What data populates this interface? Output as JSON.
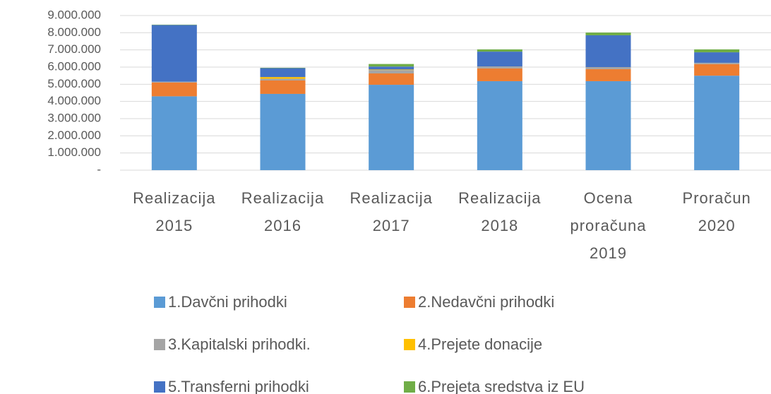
{
  "chart_data": {
    "type": "stacked_bar",
    "categories": [
      "Realizacija 2015",
      "Realizacija 2016",
      "Realizacija 2017",
      "Realizacija 2018",
      "Ocena proračuna 2019",
      "Proračun 2020"
    ],
    "series": [
      {
        "name": "1.Davčni prihodki",
        "color": "#5b9bd5",
        "values": [
          4300000,
          4440000,
          4970000,
          5180000,
          5180000,
          5500000
        ]
      },
      {
        "name": "2.Nedavčni prihodki",
        "color": "#ed7d31",
        "values": [
          800000,
          780000,
          660000,
          740000,
          700000,
          670000
        ]
      },
      {
        "name": "3.Kapitalski prihodki.",
        "color": "#a5a5a5",
        "values": [
          50000,
          100000,
          200000,
          120000,
          120000,
          80000
        ]
      },
      {
        "name": "4.Prejete donacije",
        "color": "#ffc000",
        "values": [
          0,
          100000,
          30000,
          0,
          0,
          0
        ]
      },
      {
        "name": "5.Transferni prihodki",
        "color": "#4472c4",
        "values": [
          3300000,
          520000,
          170000,
          860000,
          1850000,
          610000
        ]
      },
      {
        "name": "6.Prejeta sredstva iz EU",
        "color": "#70ad47",
        "values": [
          20000,
          20000,
          150000,
          130000,
          160000,
          170000
        ]
      }
    ],
    "ylim": [
      0,
      9000000
    ],
    "yticks": [
      {
        "value": 0,
        "label": "-"
      },
      {
        "value": 1000000,
        "label": "1.000.000"
      },
      {
        "value": 2000000,
        "label": "2.000.000"
      },
      {
        "value": 3000000,
        "label": "3.000.000"
      },
      {
        "value": 4000000,
        "label": "4.000.000"
      },
      {
        "value": 5000000,
        "label": "5.000.000"
      },
      {
        "value": 6000000,
        "label": "6.000.000"
      },
      {
        "value": 7000000,
        "label": "7.000.000"
      },
      {
        "value": 8000000,
        "label": "8.000.000"
      },
      {
        "value": 9000000,
        "label": "9.000.000"
      }
    ],
    "grid": true,
    "legend": "bottom"
  }
}
